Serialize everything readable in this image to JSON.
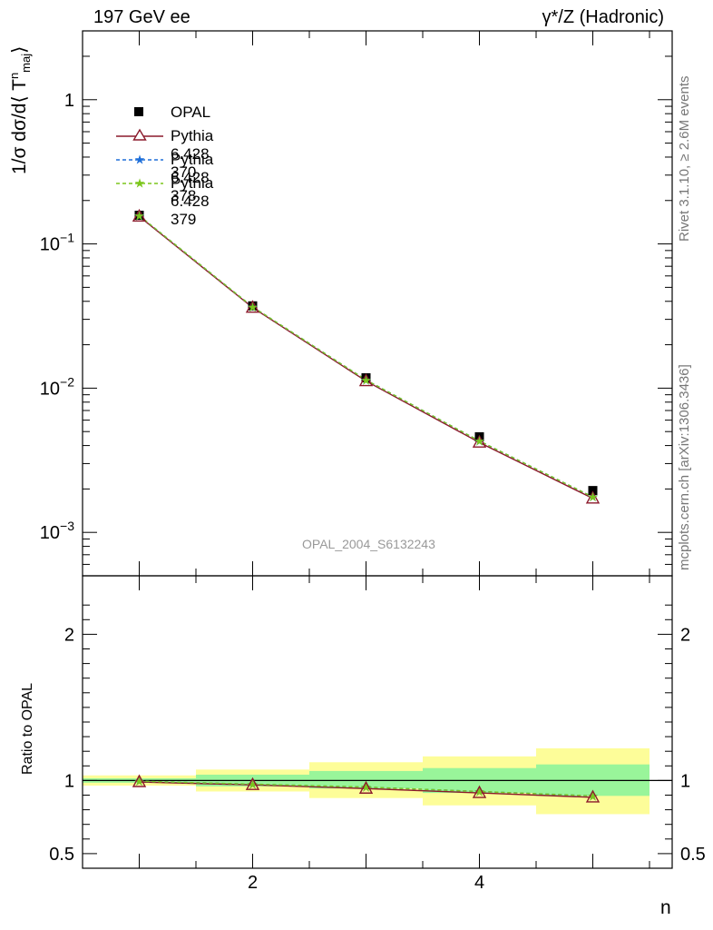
{
  "header": {
    "left_title": "197 GeV ee",
    "right_title": "γ*/Z (Hadronic)"
  },
  "side_labels": {
    "rivet": "Rivet 3.1.10, ≥ 2.6M events",
    "mcplots": "mcplots.cern.ch [arXiv:1306.3436]"
  },
  "watermark": "OPAL_2004_S6132243",
  "colors": {
    "opal": "#000000",
    "pythia370": "#8b1a2b",
    "pythia378": "#1e6fd9",
    "pythia379": "#7cc61c",
    "band_inner": "#99f59a",
    "band_outer": "#fdfd99"
  },
  "chart_data": [
    {
      "type": "scatter",
      "panel": "main",
      "xlabel": "n",
      "ylabel": "1/σ dσ/d⟨ T",
      "ylabel_sup": "n",
      "ylabel_sub": "maj",
      "ylabel_close": "⟩",
      "log_y": true,
      "xlim": [
        0.5,
        5.7
      ],
      "ylim": [
        0.0005,
        3.0
      ],
      "yticks": [
        {
          "value": 1,
          "base": "1",
          "exp": ""
        },
        {
          "value": 0.1,
          "base": "10",
          "exp": "−1"
        },
        {
          "value": 0.01,
          "base": "10",
          "exp": "−2"
        },
        {
          "value": 0.001,
          "base": "10",
          "exp": "−3"
        }
      ],
      "x": [
        1,
        2,
        3,
        4,
        5
      ],
      "series": [
        {
          "name": "OPAL",
          "values": [
            0.158,
            0.0372,
            0.0118,
            0.0046,
            0.00195
          ]
        },
        {
          "name": "Pythia 6.428 370",
          "values": [
            0.155,
            0.0362,
            0.0112,
            0.0042,
            0.00172
          ]
        },
        {
          "name": "Pythia 6.428 378",
          "values": [
            0.157,
            0.0366,
            0.0114,
            0.0043,
            0.00176
          ]
        },
        {
          "name": "Pythia 6.428 379",
          "values": [
            0.157,
            0.0366,
            0.0114,
            0.0043,
            0.00176
          ]
        }
      ]
    },
    {
      "type": "line",
      "panel": "ratio",
      "ylabel": "Ratio to OPAL",
      "xlim": [
        0.5,
        5.7
      ],
      "ylim": [
        0.4,
        2.4
      ],
      "xticks": [
        "2",
        "4"
      ],
      "yticks": [
        "0.5",
        "1",
        "2"
      ],
      "bins": [
        {
          "lo": 0.5,
          "hi": 1.5,
          "inner": [
            0.985,
            1.015
          ],
          "outer": [
            0.965,
            1.035
          ]
        },
        {
          "lo": 1.5,
          "hi": 2.5,
          "inner": [
            0.96,
            1.04
          ],
          "outer": [
            0.925,
            1.075
          ]
        },
        {
          "lo": 2.5,
          "hi": 3.5,
          "inner": [
            0.945,
            1.065
          ],
          "outer": [
            0.88,
            1.125
          ]
        },
        {
          "lo": 3.5,
          "hi": 4.5,
          "inner": [
            0.915,
            1.085
          ],
          "outer": [
            0.83,
            1.165
          ]
        },
        {
          "lo": 4.5,
          "hi": 5.5,
          "inner": [
            0.895,
            1.11
          ],
          "outer": [
            0.77,
            1.22
          ]
        }
      ],
      "x": [
        1,
        2,
        3,
        4,
        5
      ],
      "series": [
        {
          "name": "Pythia 6.428 370",
          "values": [
            0.99,
            0.97,
            0.945,
            0.915,
            0.885
          ]
        },
        {
          "name": "Pythia 6.428 378",
          "values": [
            0.995,
            0.975,
            0.955,
            0.925,
            0.895
          ]
        },
        {
          "name": "Pythia 6.428 379",
          "values": [
            0.995,
            0.975,
            0.955,
            0.925,
            0.895
          ]
        }
      ]
    }
  ]
}
